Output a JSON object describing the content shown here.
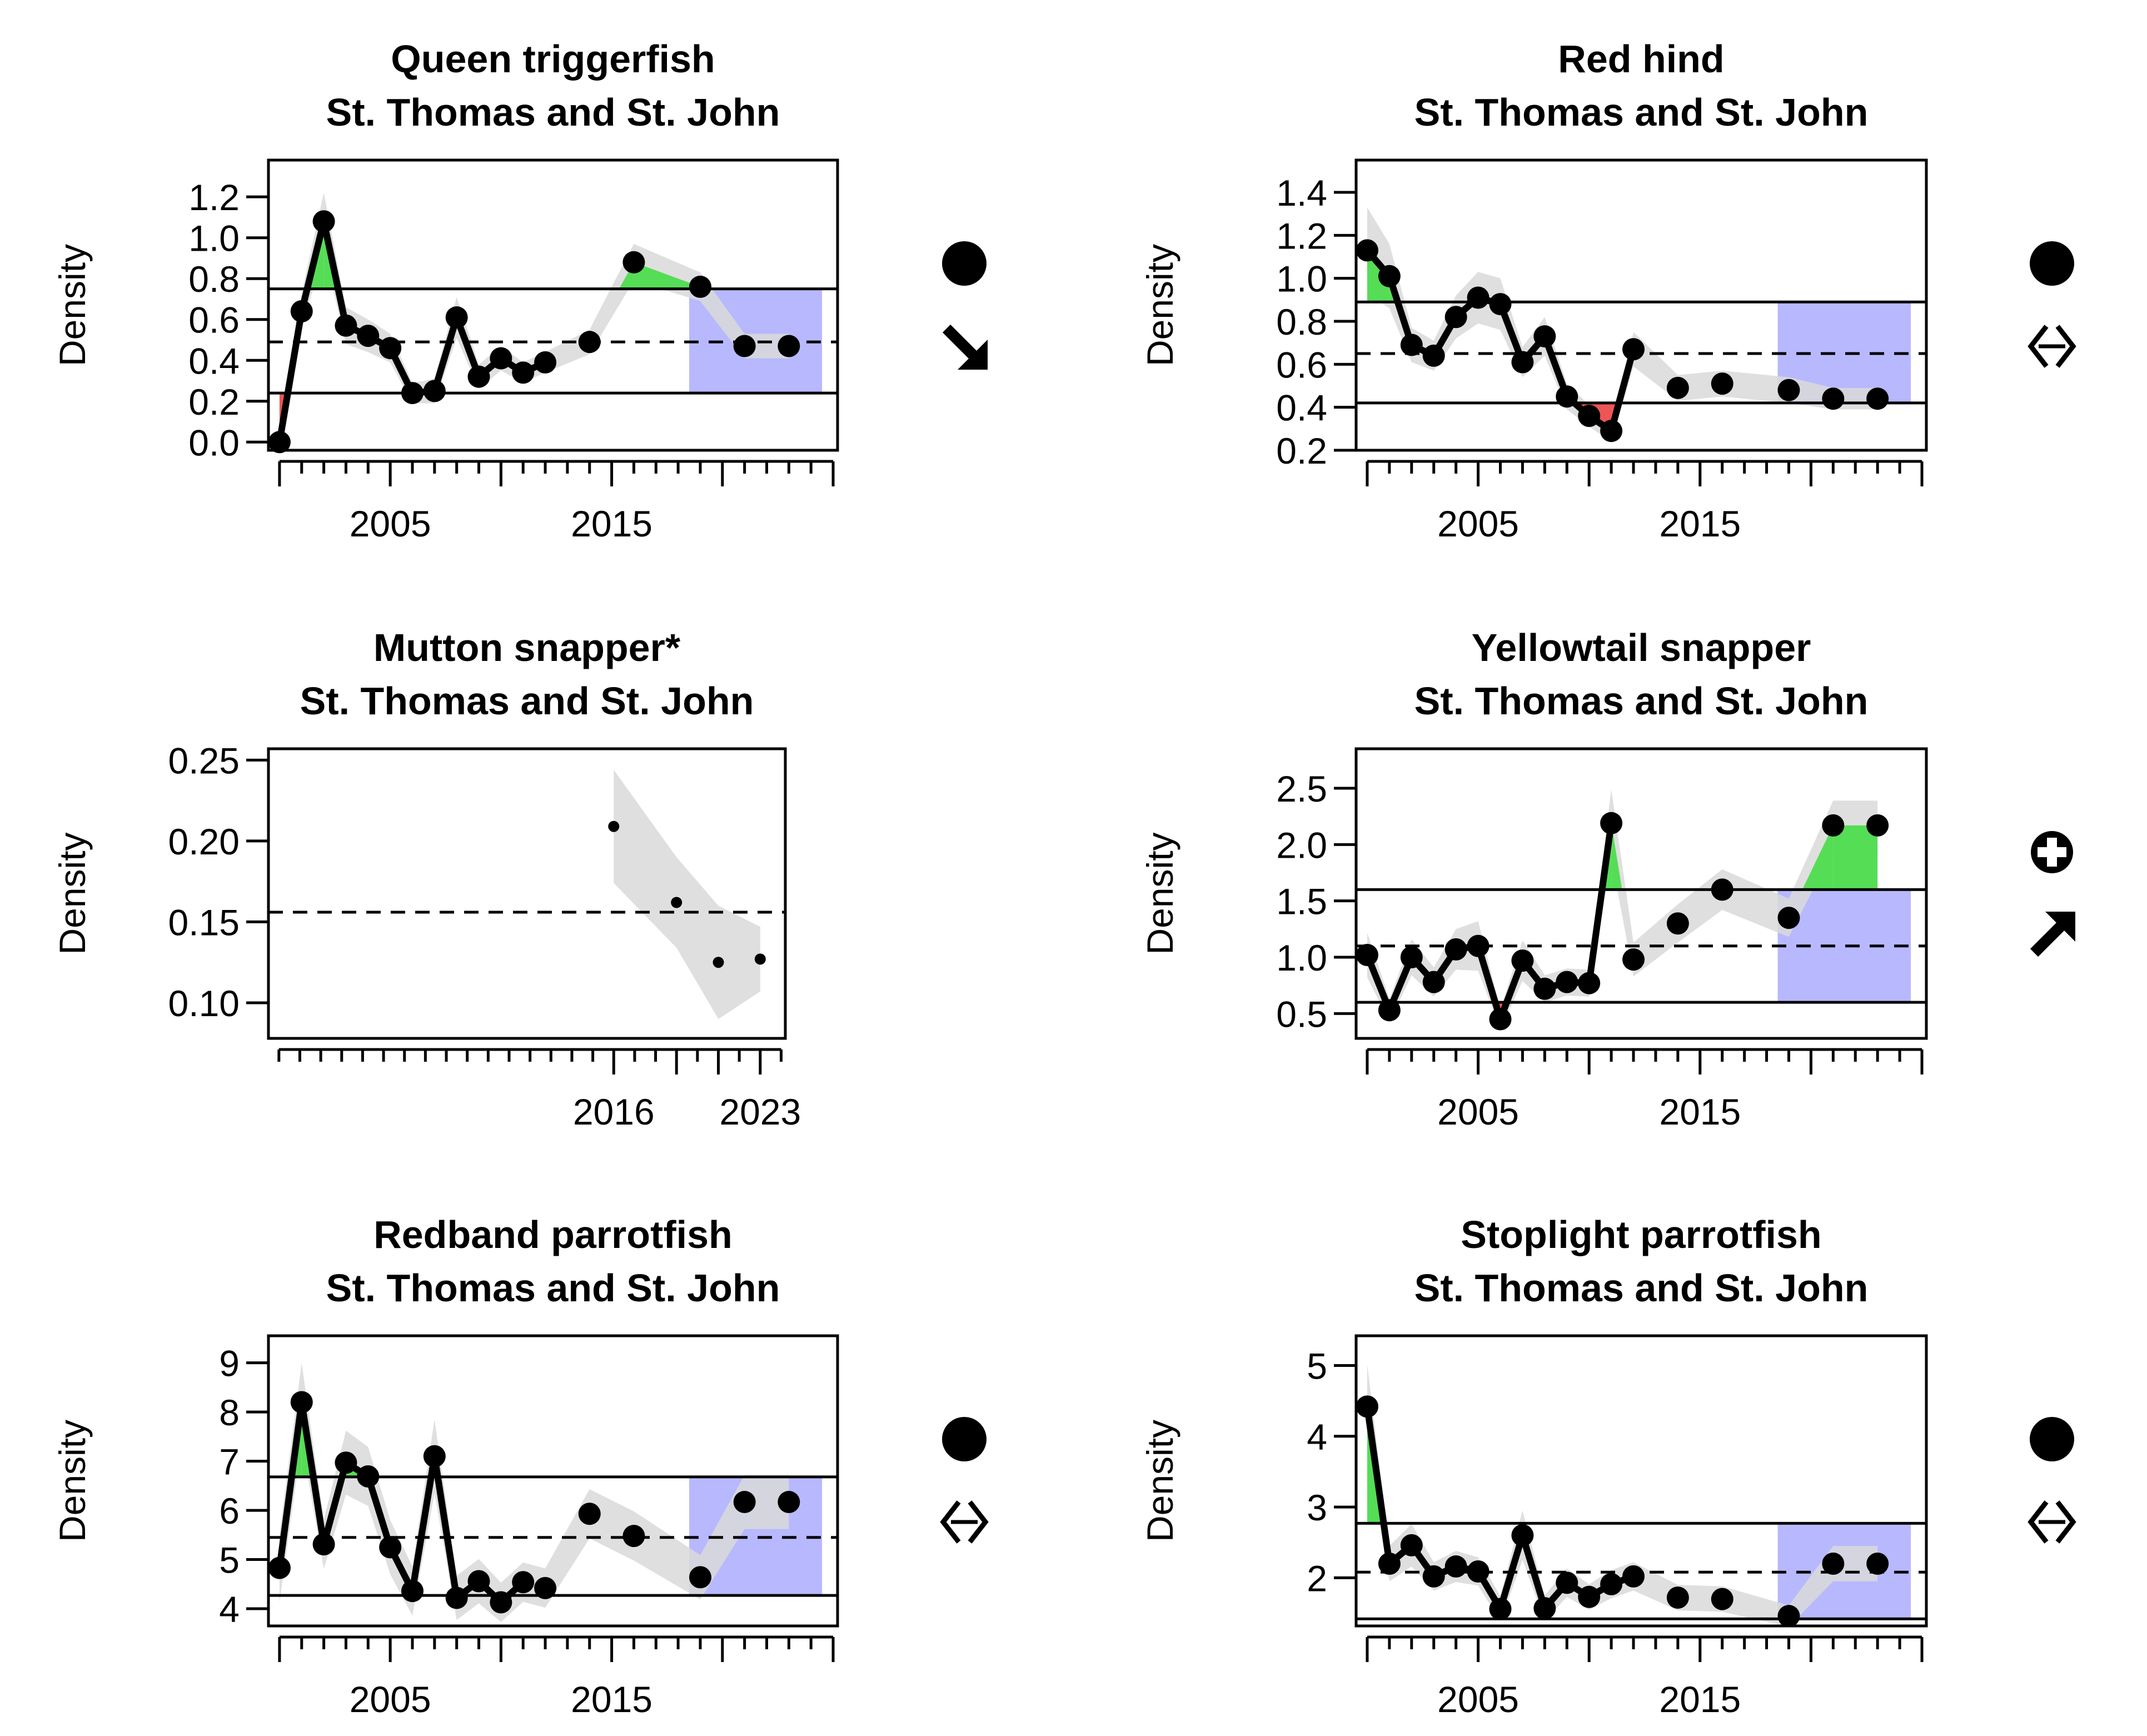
{
  "chart_data": [
    {
      "type": "line",
      "title": "Queen triggerfish",
      "subtitle": "St. Thomas and St. John",
      "ylabel": "Density",
      "xlim": [
        1999.5,
        2025.2
      ],
      "ylim": [
        -0.04,
        1.38
      ],
      "yticks": [
        0.0,
        0.2,
        0.4,
        0.6,
        0.8,
        1.0,
        1.2
      ],
      "ytick_labels": [
        "0.0",
        "0.2",
        "0.4",
        "0.6",
        "0.8",
        "1.0",
        "1.2"
      ],
      "xticks_labeled": [
        2005,
        2015
      ],
      "x": [
        2000,
        2001,
        2002,
        2003,
        2004,
        2005,
        2006,
        2007,
        2008,
        2009,
        2010,
        2011,
        2012,
        2014,
        2016,
        2019,
        2021,
        2023
      ],
      "y": [
        0.0,
        0.64,
        1.08,
        0.57,
        0.52,
        0.46,
        0.24,
        0.25,
        0.61,
        0.32,
        0.41,
        0.34,
        0.39,
        0.49,
        0.88,
        0.76,
        0.47,
        0.47
      ],
      "se": [
        0.03,
        0.09,
        0.14,
        0.09,
        0.08,
        0.07,
        0.05,
        0.06,
        0.1,
        0.06,
        0.06,
        0.05,
        0.05,
        0.06,
        0.09,
        0.07,
        0.06,
        0.06
      ],
      "connected_until": 2012,
      "mean": 0.49,
      "upper": 0.75,
      "lower": 0.24,
      "recent_window": [
        2018.5,
        2024.5
      ],
      "status": "filled-circle",
      "trend": "arrow-down-right"
    },
    {
      "type": "line",
      "title": "Red hind",
      "subtitle": "St. Thomas and St. John",
      "ylabel": "Density",
      "xlim": [
        1999.5,
        2025.2
      ],
      "ylim": [
        0.2,
        1.55
      ],
      "yticks": [
        0.2,
        0.4,
        0.6,
        0.8,
        1.0,
        1.2,
        1.4
      ],
      "ytick_labels": [
        "0.2",
        "0.4",
        "0.6",
        "0.8",
        "1.0",
        "1.2",
        "1.4"
      ],
      "xticks_labeled": [
        2005,
        2015
      ],
      "x": [
        2000,
        2001,
        2002,
        2003,
        2004,
        2005,
        2006,
        2007,
        2008,
        2009,
        2010,
        2011,
        2012,
        2014,
        2016,
        2019,
        2021,
        2023
      ],
      "y": [
        1.13,
        1.01,
        0.69,
        0.64,
        0.82,
        0.91,
        0.88,
        0.61,
        0.73,
        0.45,
        0.36,
        0.29,
        0.67,
        0.49,
        0.51,
        0.48,
        0.44,
        0.44
      ],
      "se": [
        0.2,
        0.15,
        0.08,
        0.07,
        0.1,
        0.12,
        0.12,
        0.07,
        0.09,
        0.06,
        0.05,
        0.05,
        0.08,
        0.06,
        0.06,
        0.06,
        0.05,
        0.05
      ],
      "connected_until": 2012,
      "mean": 0.65,
      "upper": 0.89,
      "lower": 0.42,
      "recent_window": [
        2018.5,
        2024.5
      ],
      "status": "filled-circle",
      "trend": "double-arrow"
    },
    {
      "type": "scatter",
      "title": "Mutton snapper*",
      "subtitle": "St. Thomas and St. John",
      "ylabel": "Density",
      "xlim": [
        1999.5,
        2024.2
      ],
      "ylim": [
        0.078,
        0.257
      ],
      "yticks": [
        0.1,
        0.15,
        0.2,
        0.25
      ],
      "ytick_labels": [
        "0.10",
        "0.15",
        "0.20",
        "0.25"
      ],
      "xticks_labeled": [
        2016,
        2023
      ],
      "x": [
        2016,
        2019,
        2021,
        2023
      ],
      "y": [
        0.209,
        0.162,
        0.125,
        0.127
      ],
      "se": [
        0.035,
        0.028,
        0.035,
        0.02
      ],
      "mean": 0.156
    },
    {
      "type": "line",
      "title": "Yellowtail snapper",
      "subtitle": "St. Thomas and St. John",
      "ylabel": "Density",
      "xlim": [
        1999.5,
        2025.2
      ],
      "ylim": [
        0.28,
        2.85
      ],
      "yticks": [
        0.5,
        1.0,
        1.5,
        2.0,
        2.5
      ],
      "ytick_labels": [
        "0.5",
        "1.0",
        "1.5",
        "2.0",
        "2.5"
      ],
      "xticks_labeled": [
        2005,
        2015
      ],
      "x": [
        2000,
        2001,
        2002,
        2003,
        2004,
        2005,
        2006,
        2007,
        2008,
        2009,
        2010,
        2011,
        2012,
        2014,
        2016,
        2019,
        2021,
        2023
      ],
      "y": [
        1.02,
        0.53,
        1.0,
        0.78,
        1.07,
        1.1,
        0.45,
        0.97,
        0.72,
        0.78,
        0.77,
        2.19,
        0.98,
        1.3,
        1.6,
        1.35,
        2.17,
        2.17
      ],
      "se": [
        0.2,
        0.1,
        0.16,
        0.13,
        0.18,
        0.22,
        0.09,
        0.18,
        0.12,
        0.12,
        0.12,
        0.3,
        0.15,
        0.17,
        0.18,
        0.17,
        0.22,
        0.22
      ],
      "connected_until": 2011,
      "mean": 1.1,
      "upper": 1.6,
      "lower": 0.6,
      "recent_window": [
        2018.5,
        2024.5
      ],
      "status": "circle-plus",
      "trend": "arrow-up-right"
    },
    {
      "type": "line",
      "title": "Redband parrotfish",
      "subtitle": "St. Thomas and St. John",
      "ylabel": "Density",
      "xlim": [
        1999.5,
        2025.2
      ],
      "ylim": [
        3.65,
        9.55
      ],
      "yticks": [
        4,
        5,
        6,
        7,
        8,
        9
      ],
      "ytick_labels": [
        "4",
        "5",
        "6",
        "7",
        "8",
        "9"
      ],
      "xticks_labeled": [
        2005,
        2015
      ],
      "x": [
        2000,
        2001,
        2002,
        2003,
        2004,
        2005,
        2006,
        2007,
        2008,
        2009,
        2010,
        2011,
        2012,
        2014,
        2016,
        2019,
        2021,
        2023
      ],
      "y": [
        4.83,
        8.2,
        5.31,
        6.97,
        6.69,
        5.25,
        4.36,
        7.1,
        4.22,
        4.56,
        4.13,
        4.54,
        4.42,
        5.93,
        5.48,
        4.64,
        6.17,
        6.17
      ],
      "se": [
        0.7,
        0.8,
        0.5,
        0.65,
        0.6,
        0.55,
        0.5,
        0.75,
        0.45,
        0.45,
        0.4,
        0.4,
        0.4,
        0.5,
        0.5,
        0.45,
        0.55,
        0.55
      ],
      "connected_until": 2011,
      "mean": 5.45,
      "upper": 6.68,
      "lower": 4.27,
      "recent_window": [
        2018.5,
        2024.5
      ],
      "status": "filled-circle",
      "trend": "double-arrow"
    },
    {
      "type": "line",
      "title": "Stoplight parrotfish",
      "subtitle": "St. Thomas and St. John",
      "ylabel": "Density",
      "xlim": [
        1999.5,
        2025.2
      ],
      "ylim": [
        1.32,
        5.42
      ],
      "yticks": [
        2,
        3,
        4,
        5
      ],
      "ytick_labels": [
        "2",
        "3",
        "4",
        "5"
      ],
      "xticks_labeled": [
        2005,
        2015
      ],
      "x": [
        2000,
        2001,
        2002,
        2003,
        2004,
        2005,
        2006,
        2007,
        2008,
        2009,
        2010,
        2011,
        2012,
        2014,
        2016,
        2019,
        2021,
        2023
      ],
      "y": [
        4.42,
        2.2,
        2.46,
        2.02,
        2.16,
        2.09,
        1.56,
        2.6,
        1.57,
        1.93,
        1.73,
        1.91,
        2.02,
        1.72,
        1.7,
        1.46,
        2.2,
        2.2
      ],
      "se": [
        0.6,
        0.25,
        0.3,
        0.2,
        0.22,
        0.2,
        0.18,
        0.35,
        0.18,
        0.2,
        0.18,
        0.2,
        0.2,
        0.18,
        0.18,
        0.15,
        0.25,
        0.25
      ],
      "connected_until": 2012,
      "mean": 2.08,
      "upper": 2.77,
      "lower": 1.42,
      "recent_window": [
        2018.5,
        2024.5
      ],
      "status": "filled-circle",
      "trend": "double-arrow"
    }
  ],
  "colors": {
    "above_upper": "#55dd55",
    "below_lower": "#ee5555",
    "recent_window": "#b8b8ff",
    "ci_band": "#d9d9d9",
    "line": "#000000"
  }
}
